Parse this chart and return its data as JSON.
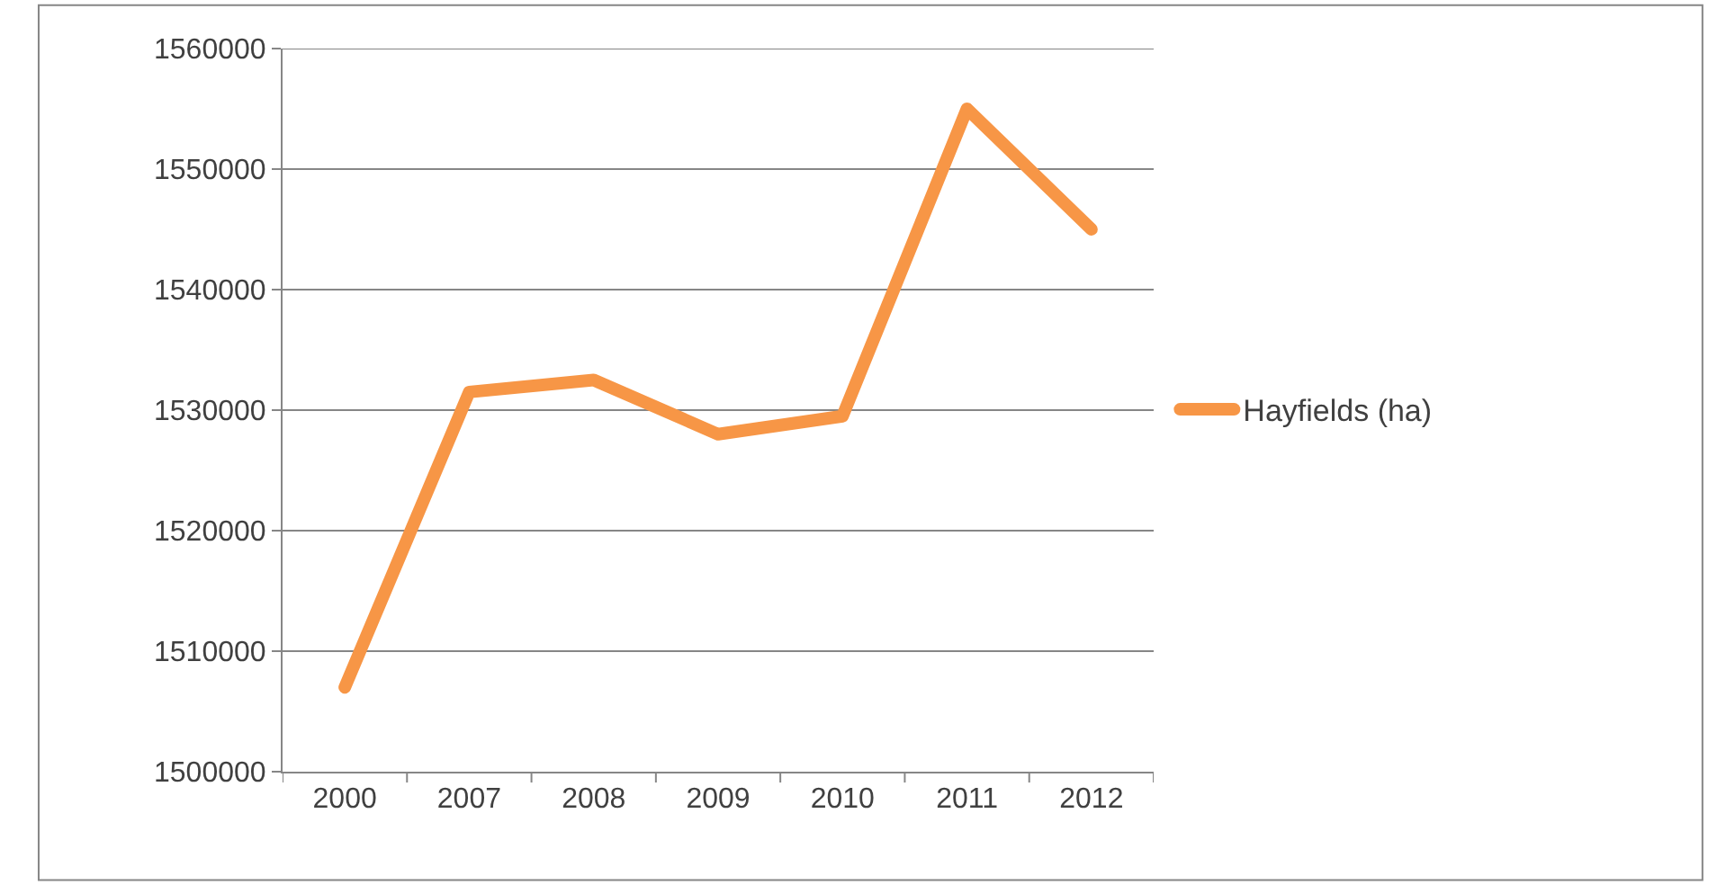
{
  "chart_data": {
    "type": "line",
    "categories": [
      "2000",
      "2007",
      "2008",
      "2009",
      "2010",
      "2011",
      "2012"
    ],
    "series": [
      {
        "name": "Hayfields (ha)",
        "color": "#f79646",
        "values": [
          1507000,
          1531500,
          1532500,
          1528000,
          1529500,
          1555000,
          1545000
        ]
      }
    ],
    "ylim": [
      1500000,
      1560000
    ],
    "yticks": [
      1500000,
      1510000,
      1520000,
      1530000,
      1540000,
      1550000,
      1560000
    ],
    "grid": "y",
    "legend": "right",
    "marker": "none",
    "line_style": "solid"
  }
}
